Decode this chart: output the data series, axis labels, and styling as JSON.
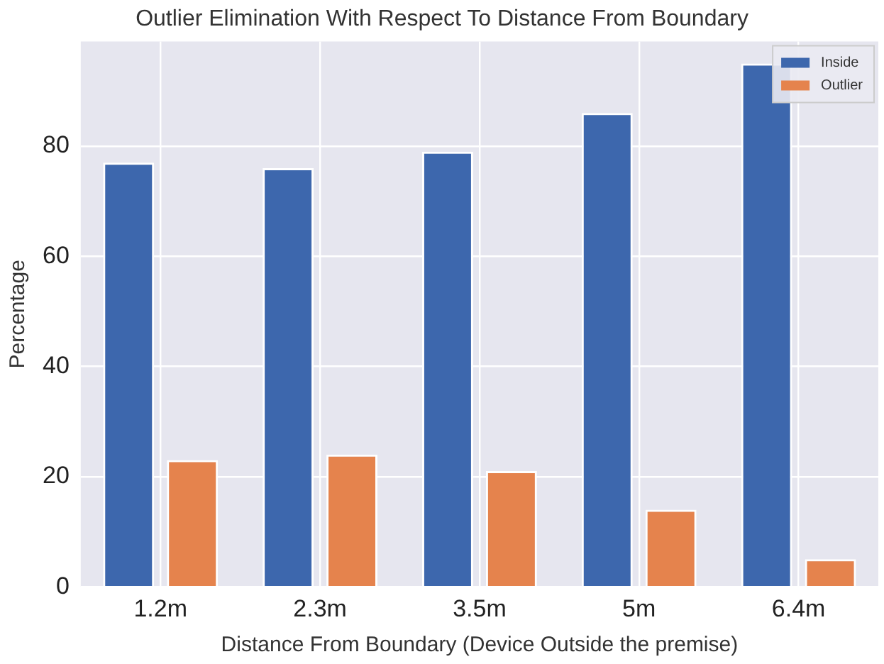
{
  "chart_data": {
    "type": "bar",
    "title": "Outlier Elimination With Respect To Distance From Boundary",
    "xlabel": "Distance From Boundary (Device Outside the premise)",
    "ylabel": "Percentage",
    "categories": [
      "1.2m",
      "2.3m",
      "3.5m",
      "5m",
      "6.4m"
    ],
    "series": [
      {
        "name": "Inside",
        "color": "#3d67ad",
        "values": [
          77,
          76,
          79,
          86,
          95
        ]
      },
      {
        "name": "Outlier",
        "color": "#e5834d",
        "values": [
          23,
          24,
          21,
          14,
          5
        ]
      }
    ],
    "ylim": [
      0,
      99
    ],
    "yticks": [
      0,
      20,
      40,
      60,
      80
    ],
    "grid": true,
    "legend": "top right"
  }
}
